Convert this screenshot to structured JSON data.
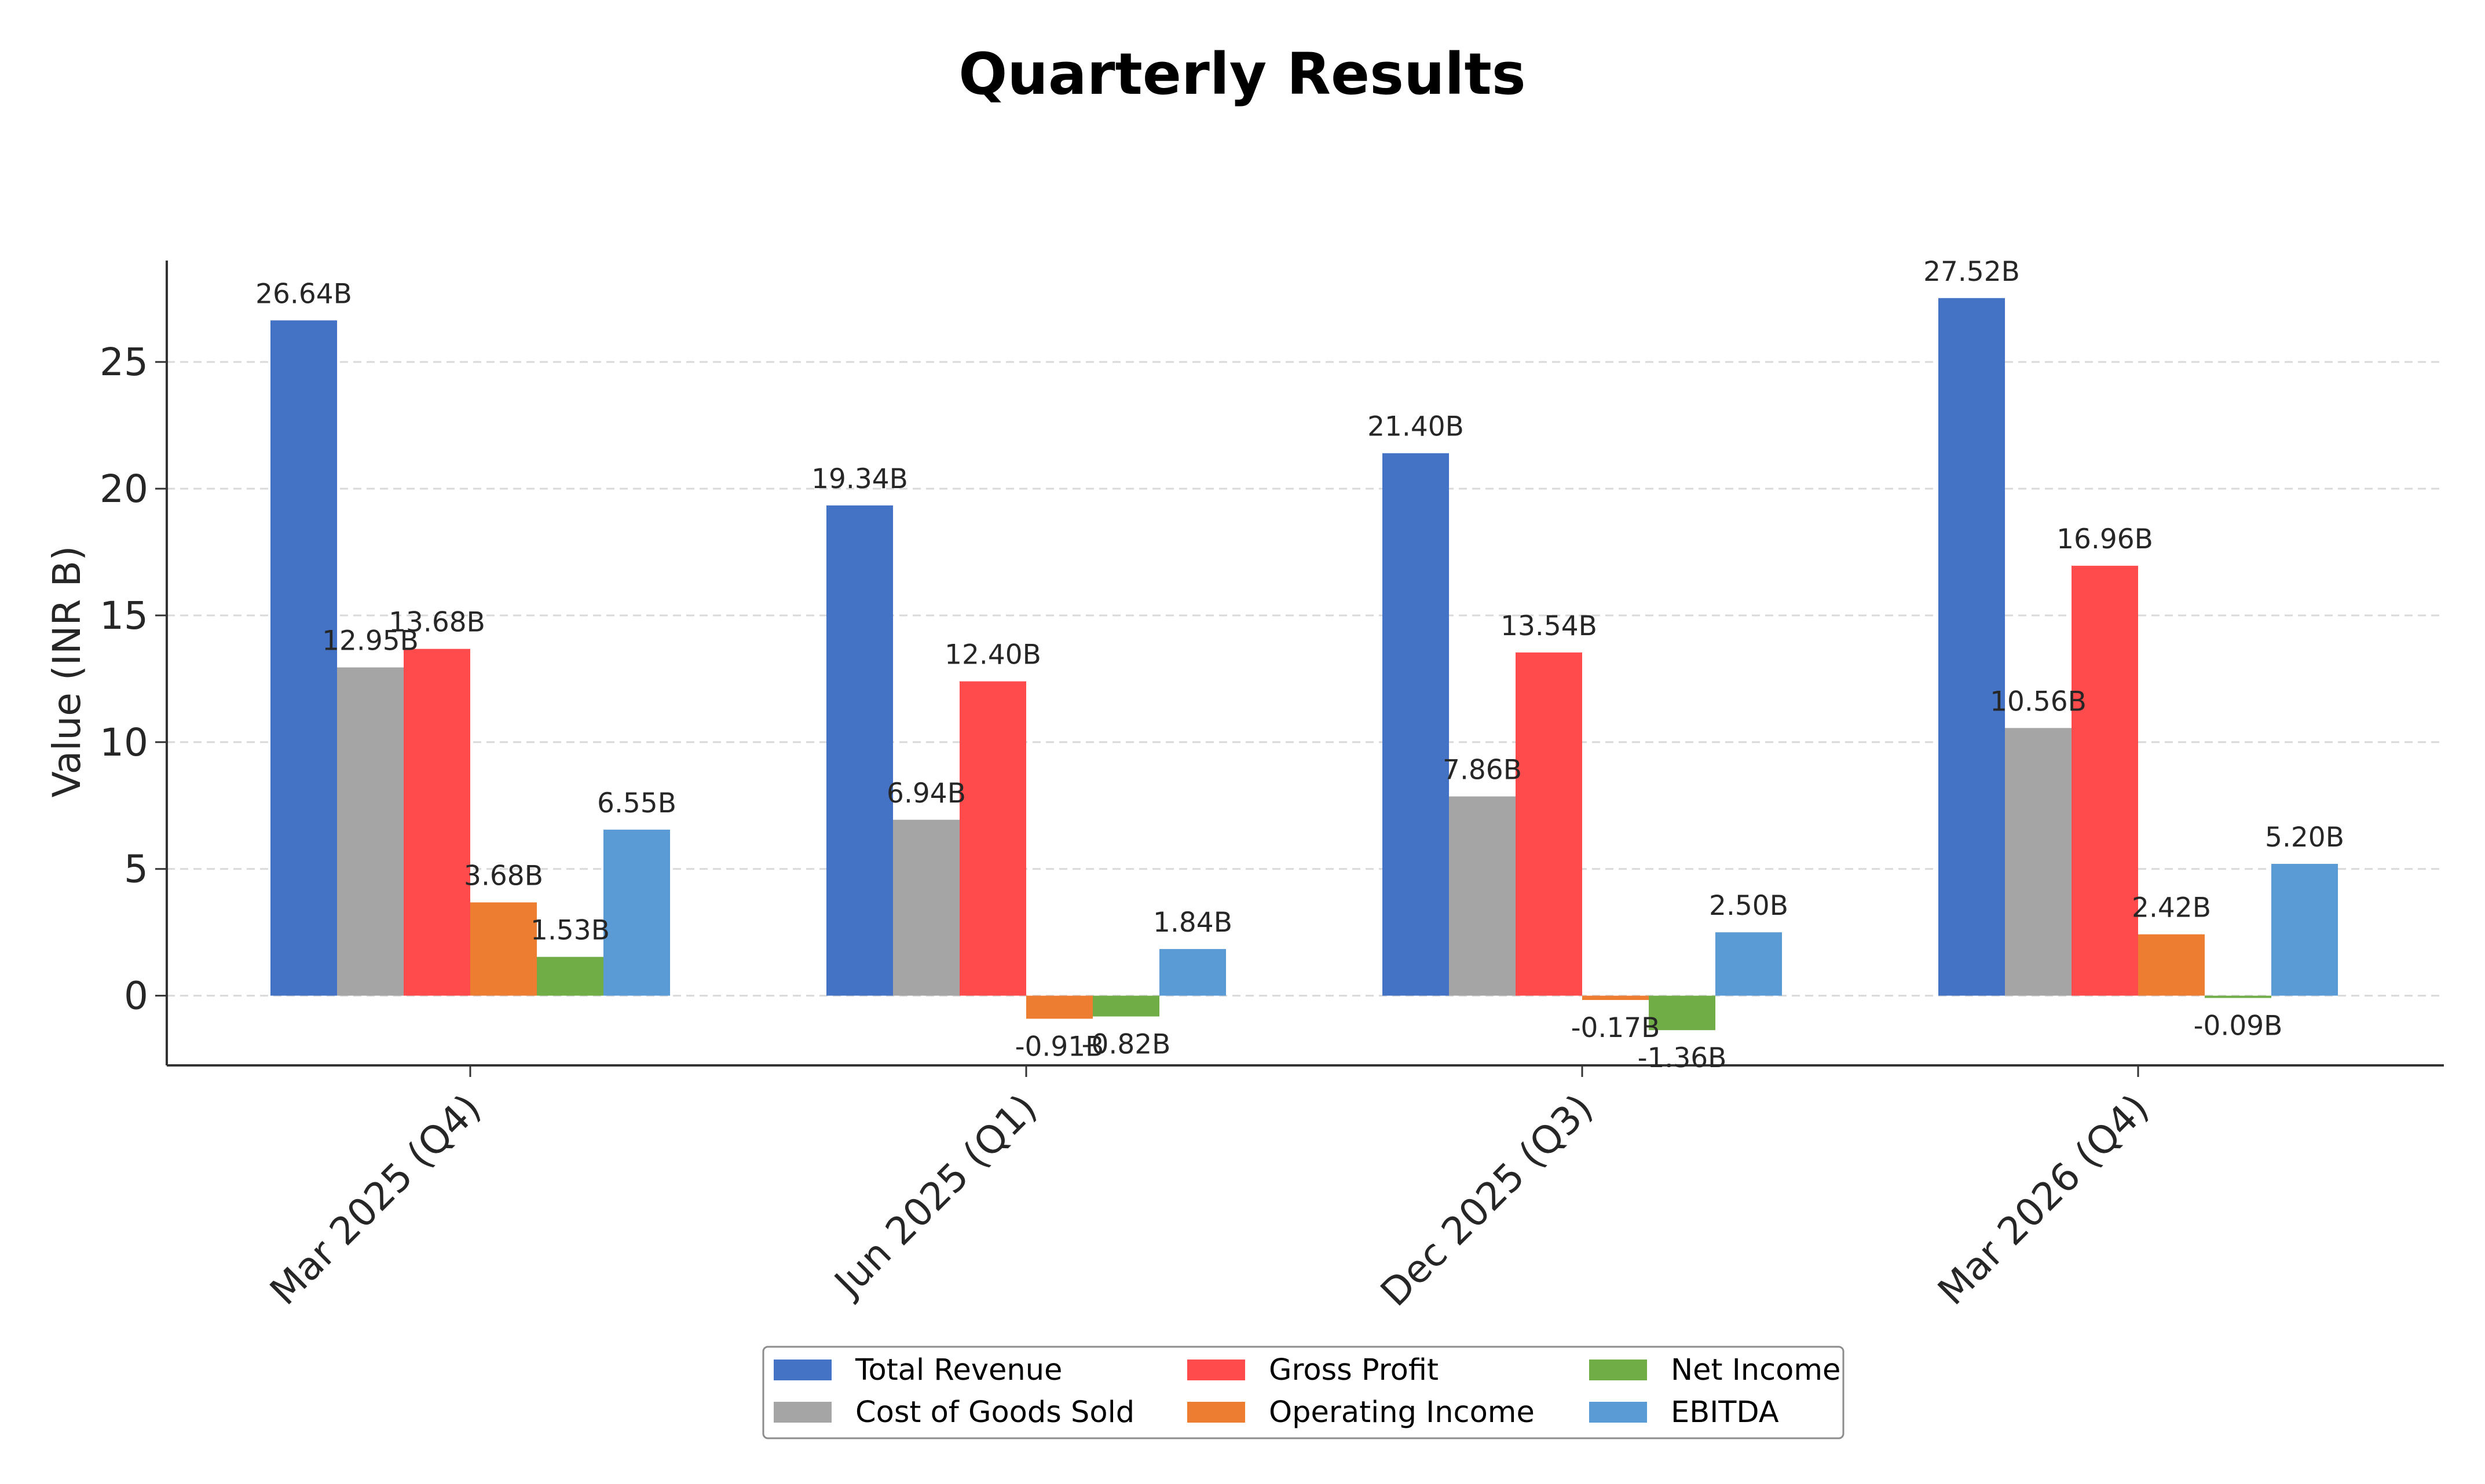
{
  "chart_data": {
    "type": "bar",
    "title": "Quarterly Results",
    "xlabel": "",
    "ylabel": "Value (INR B)",
    "ylim": [
      -2.75,
      29
    ],
    "yticks": [
      0,
      5,
      10,
      15,
      20,
      25
    ],
    "grid": "horizontal dashed",
    "legend_position": "bottom-center",
    "categories": [
      "Mar 2025 (Q4)",
      "Jun 2025 (Q1)",
      "Dec 2025 (Q3)",
      "Mar 2026 (Q4)"
    ],
    "series": [
      {
        "name": "Total Revenue",
        "color": "#4472C4",
        "values": [
          26.64,
          19.34,
          21.4,
          27.52
        ],
        "labels": [
          "26.64B",
          "19.34B",
          "21.40B",
          "27.52B"
        ]
      },
      {
        "name": "Cost of Goods Sold",
        "color": "#A5A5A5",
        "values": [
          12.95,
          6.94,
          7.86,
          10.56
        ],
        "labels": [
          "12.95B",
          "6.94B",
          "7.86B",
          "10.56B"
        ]
      },
      {
        "name": "Gross Profit",
        "color": "#FF4B4B",
        "values": [
          13.68,
          12.4,
          13.54,
          16.96
        ],
        "labels": [
          "13.68B",
          "12.40B",
          "13.54B",
          "16.96B"
        ]
      },
      {
        "name": "Operating Income",
        "color": "#ED7D31",
        "values": [
          3.68,
          -0.91,
          -0.17,
          2.42
        ],
        "labels": [
          "3.68B",
          "-0.91B",
          "-0.17B",
          "2.42B"
        ]
      },
      {
        "name": "Net Income",
        "color": "#70AD47",
        "values": [
          1.53,
          -0.82,
          -1.36,
          -0.09
        ],
        "labels": [
          "1.53B",
          "-0.82B",
          "-1.36B",
          "-0.09B"
        ]
      },
      {
        "name": "EBITDA",
        "color": "#5B9BD5",
        "values": [
          6.55,
          1.84,
          2.5,
          5.2
        ],
        "labels": [
          "6.55B",
          "1.84B",
          "2.50B",
          "5.20B"
        ]
      }
    ]
  }
}
